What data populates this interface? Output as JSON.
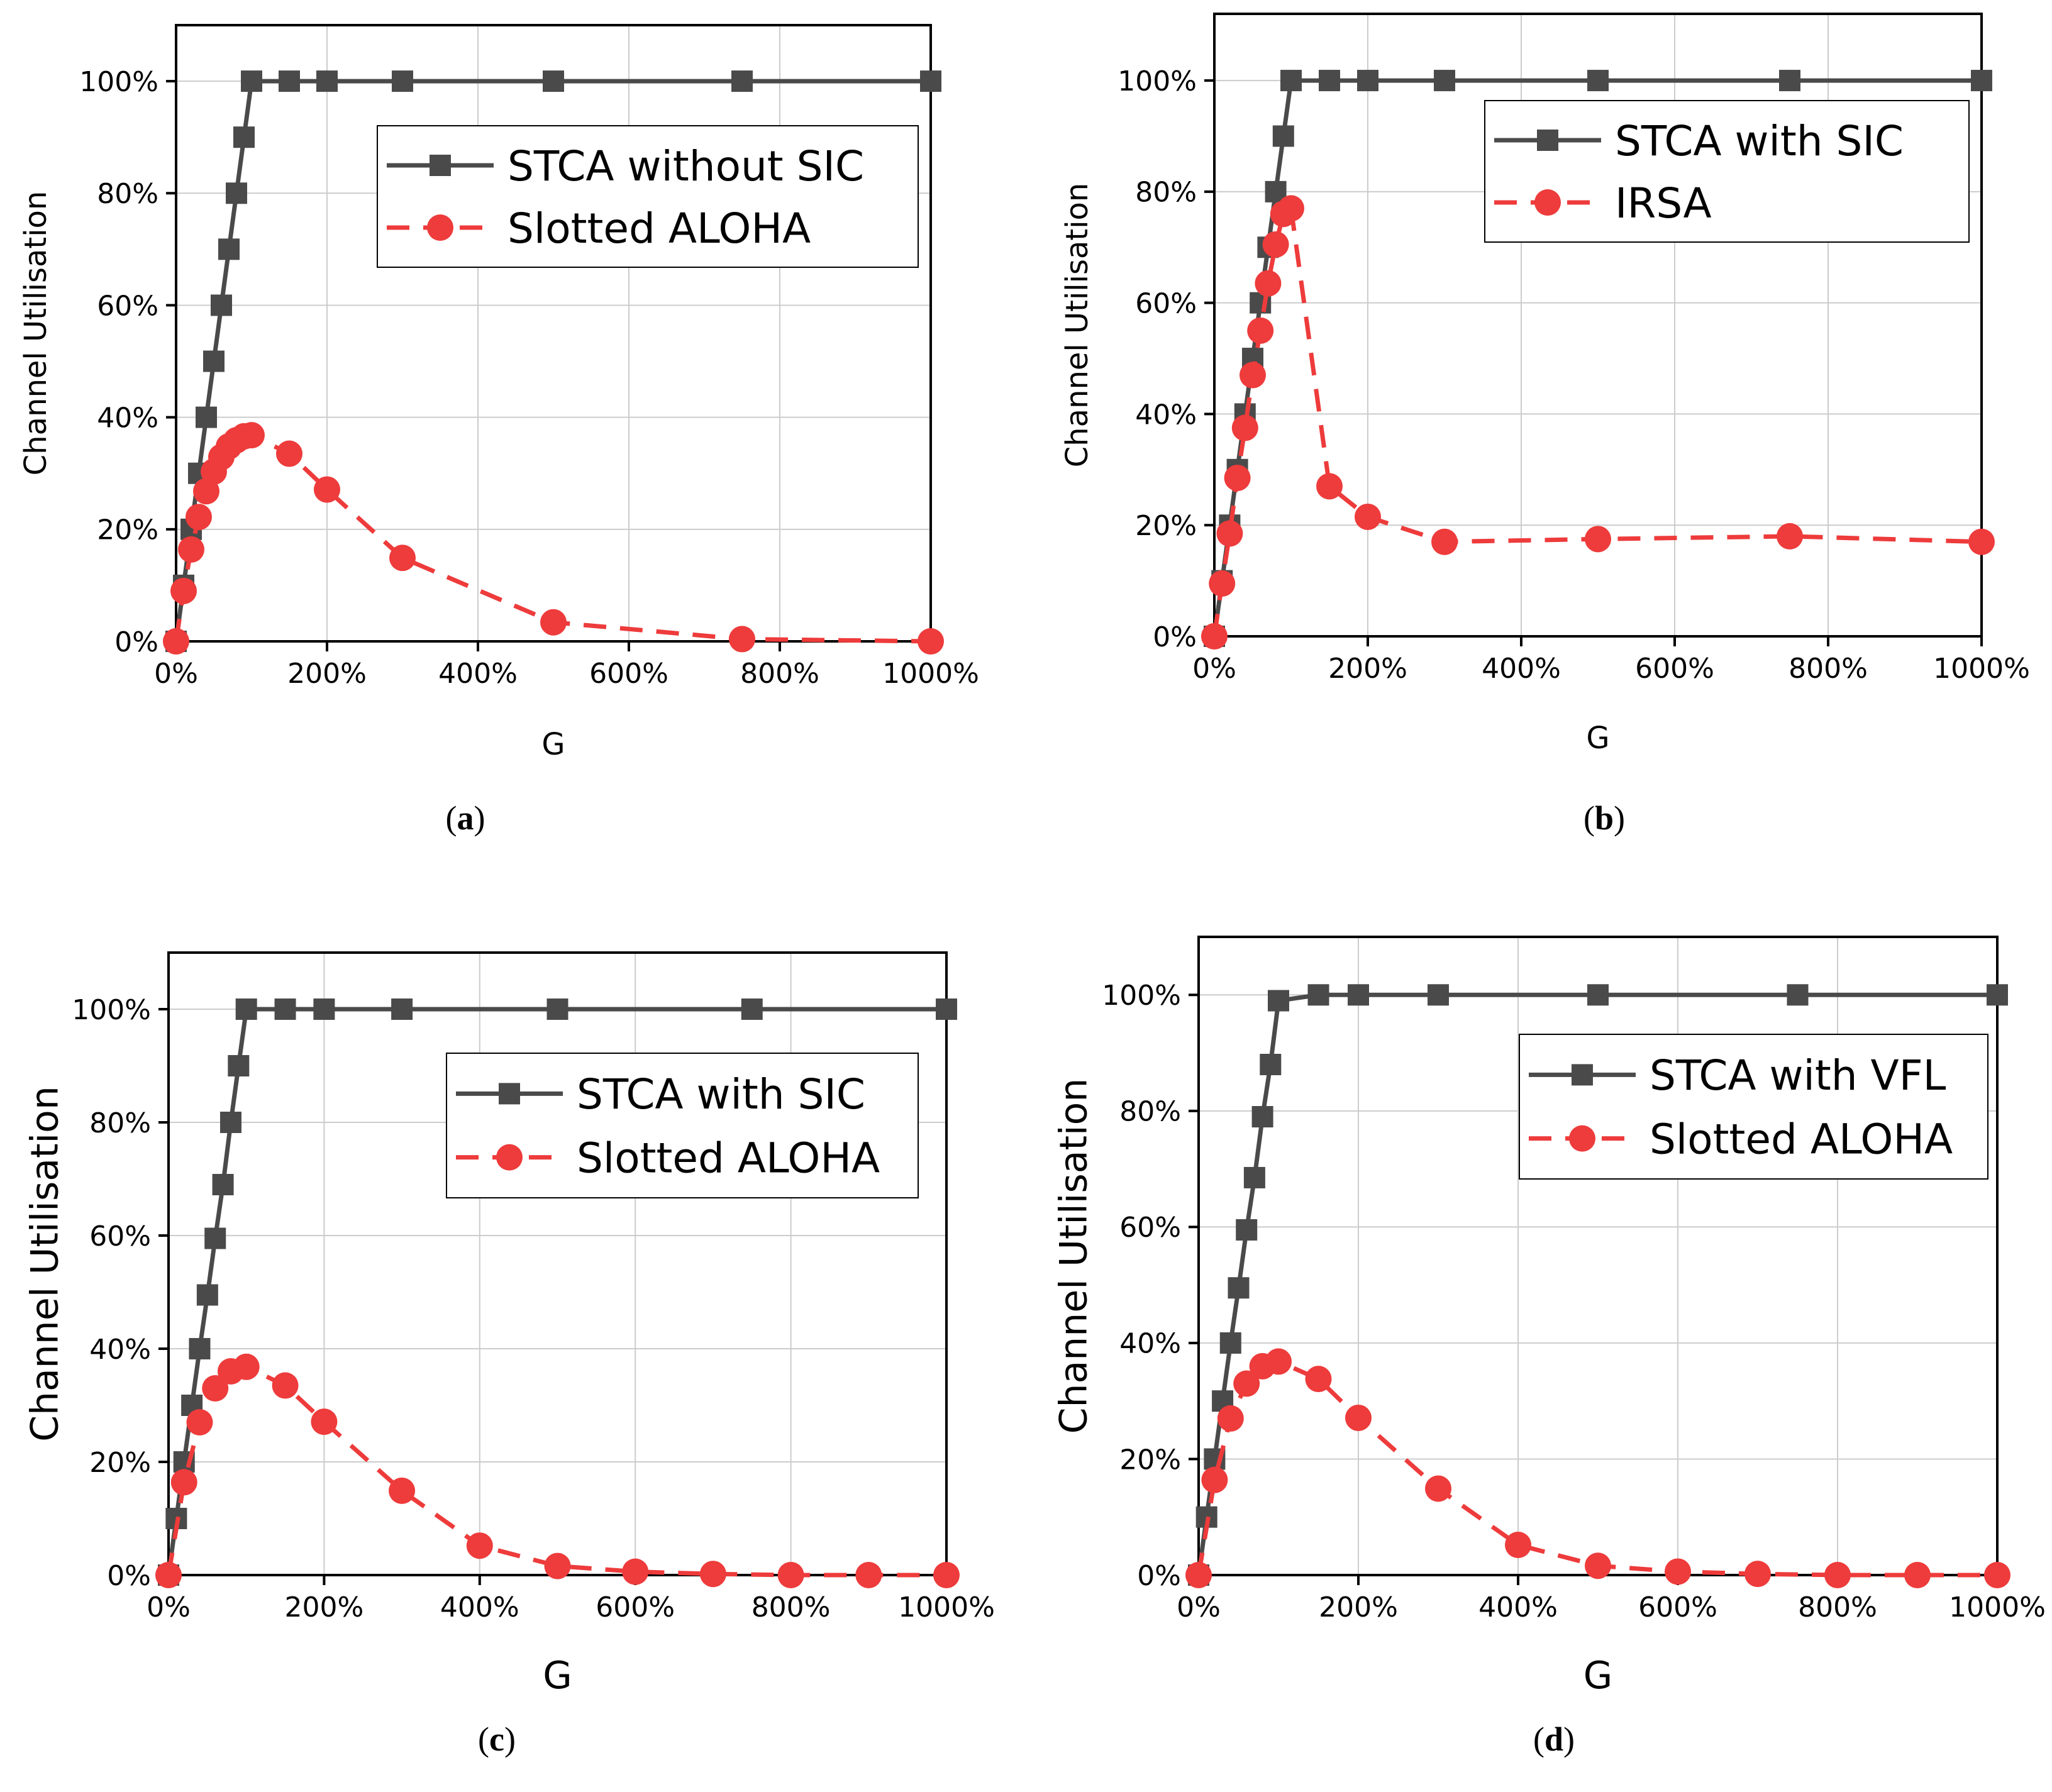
{
  "figure": {
    "panels": [
      {
        "id": "a",
        "caption": "a"
      },
      {
        "id": "b",
        "caption": "b"
      },
      {
        "id": "c",
        "caption": "c"
      },
      {
        "id": "d",
        "caption": "d"
      }
    ]
  },
  "colors": {
    "series1": "#4a4a4a",
    "series2": "#ee3b3b",
    "grid": "#cccccc",
    "axis": "#000000"
  },
  "chart_data": [
    {
      "panel": "a",
      "type": "line",
      "xlabel": "G",
      "ylabel": "Channel Utilisation",
      "xlim": [
        0,
        1000
      ],
      "ylim": [
        0,
        110
      ],
      "x_ticks": [
        0,
        200,
        400,
        600,
        800,
        1000
      ],
      "x_tick_labels": [
        "0%",
        "200%",
        "400%",
        "600%",
        "800%",
        "1000%"
      ],
      "y_ticks": [
        0,
        20,
        40,
        60,
        80,
        100
      ],
      "y_tick_labels": [
        "0%",
        "20%",
        "40%",
        "60%",
        "80%",
        "100%"
      ],
      "grid": true,
      "legend_position": "top-right",
      "series": [
        {
          "name": "STCA without SIC",
          "marker": "square",
          "line": "solid",
          "x": [
            0,
            10,
            20,
            30,
            40,
            50,
            60,
            70,
            80,
            90,
            100,
            150,
            200,
            300,
            500,
            750,
            1000
          ],
          "y": [
            0,
            10,
            20,
            30,
            40,
            50,
            60,
            70,
            80,
            90,
            100,
            100,
            100,
            100,
            100,
            100,
            100
          ]
        },
        {
          "name": "Slotted ALOHA",
          "marker": "circle",
          "line": "dashed",
          "x": [
            0,
            10,
            20,
            30,
            40,
            50,
            60,
            70,
            80,
            90,
            100,
            150,
            200,
            300,
            500,
            750,
            1000
          ],
          "y": [
            0,
            9,
            16.4,
            22.2,
            26.8,
            30.3,
            32.9,
            34.8,
            35.9,
            36.6,
            36.8,
            33.5,
            27.1,
            14.9,
            3.4,
            0.4,
            0
          ]
        }
      ]
    },
    {
      "panel": "b",
      "type": "line",
      "xlabel": "G",
      "ylabel": "Channel Utilisation",
      "xlim": [
        0,
        1000
      ],
      "ylim": [
        0,
        112
      ],
      "x_ticks": [
        0,
        200,
        400,
        600,
        800,
        1000
      ],
      "x_tick_labels": [
        "0%",
        "200%",
        "400%",
        "600%",
        "800%",
        "1000%"
      ],
      "y_ticks": [
        0,
        20,
        40,
        60,
        80,
        100
      ],
      "y_tick_labels": [
        "0%",
        "20%",
        "40%",
        "60%",
        "80%",
        "100%"
      ],
      "grid": true,
      "legend_position": "top-right",
      "series": [
        {
          "name": "STCA with SIC",
          "marker": "square",
          "line": "solid",
          "x": [
            0,
            10,
            20,
            30,
            40,
            50,
            60,
            70,
            80,
            90,
            100,
            150,
            200,
            300,
            500,
            750,
            1000
          ],
          "y": [
            0,
            10,
            20,
            30,
            40,
            50,
            60,
            70,
            80,
            90,
            100,
            100,
            100,
            100,
            100,
            100,
            100
          ]
        },
        {
          "name": "IRSA",
          "marker": "circle",
          "line": "dashed",
          "x": [
            0,
            10,
            20,
            30,
            40,
            50,
            60,
            70,
            80,
            90,
            100,
            150,
            200,
            300,
            500,
            750,
            1000
          ],
          "y": [
            0,
            9.5,
            18.5,
            28.5,
            37.5,
            47,
            55,
            63.5,
            70.5,
            76,
            77,
            27,
            21.5,
            17,
            17.5,
            18,
            17
          ]
        }
      ]
    },
    {
      "panel": "c",
      "type": "line",
      "xlabel": "G",
      "ylabel": "Channel Utilisation",
      "xlim": [
        0,
        1000
      ],
      "ylim": [
        0,
        110
      ],
      "x_ticks": [
        0,
        200,
        400,
        600,
        800,
        1000
      ],
      "x_tick_labels": [
        "0%",
        "200%",
        "400%",
        "600%",
        "800%",
        "1000%"
      ],
      "y_ticks": [
        0,
        20,
        40,
        60,
        80,
        100
      ],
      "y_tick_labels": [
        "0%",
        "20%",
        "40%",
        "60%",
        "80%",
        "100%"
      ],
      "grid": true,
      "legend_position": "top-right",
      "series": [
        {
          "name": "STCA with SIC",
          "marker": "square",
          "line": "solid",
          "x": [
            0,
            10,
            20,
            30,
            40,
            50,
            60,
            70,
            80,
            90,
            100,
            150,
            200,
            300,
            500,
            750,
            1000
          ],
          "y": [
            0,
            10,
            20,
            30,
            40,
            49.5,
            59.5,
            69,
            80,
            90,
            100,
            100,
            100,
            100,
            100,
            100,
            100
          ]
        },
        {
          "name": "Slotted ALOHA",
          "marker": "circle",
          "line": "dashed",
          "x": [
            0,
            20,
            40,
            60,
            80,
            100,
            150,
            200,
            300,
            400,
            500,
            600,
            700,
            800,
            900,
            1000
          ],
          "y": [
            0,
            16.4,
            27,
            33,
            36,
            36.8,
            33.5,
            27.1,
            14.9,
            5.2,
            1.6,
            0.6,
            0.2,
            0,
            0,
            0
          ]
        }
      ]
    },
    {
      "panel": "d",
      "type": "line",
      "xlabel": "G",
      "ylabel": "Channel Utilisation",
      "xlim": [
        0,
        1000
      ],
      "ylim": [
        0,
        110
      ],
      "x_ticks": [
        0,
        200,
        400,
        600,
        800,
        1000
      ],
      "x_tick_labels": [
        "0%",
        "200%",
        "400%",
        "600%",
        "800%",
        "1000%"
      ],
      "y_ticks": [
        0,
        20,
        40,
        60,
        80,
        100
      ],
      "y_tick_labels": [
        "0%",
        "20%",
        "40%",
        "60%",
        "80%",
        "100%"
      ],
      "grid": true,
      "legend_position": "top-right",
      "series": [
        {
          "name": "STCA with VFL",
          "marker": "square",
          "line": "solid",
          "x": [
            0,
            10,
            20,
            30,
            40,
            50,
            60,
            70,
            80,
            90,
            100,
            150,
            200,
            300,
            500,
            750,
            1000
          ],
          "y": [
            0,
            10,
            20,
            30,
            40,
            49.5,
            59.5,
            68.5,
            79,
            88,
            99,
            100,
            100,
            100,
            100,
            100,
            100
          ]
        },
        {
          "name": "Slotted ALOHA",
          "marker": "circle",
          "line": "dashed",
          "x": [
            0,
            20,
            40,
            60,
            80,
            100,
            150,
            200,
            300,
            400,
            500,
            600,
            700,
            800,
            900,
            1000
          ],
          "y": [
            0,
            16.4,
            27,
            33,
            36,
            36.8,
            33.8,
            27.1,
            14.9,
            5.2,
            1.6,
            0.6,
            0.2,
            0,
            0,
            0
          ]
        }
      ]
    }
  ]
}
